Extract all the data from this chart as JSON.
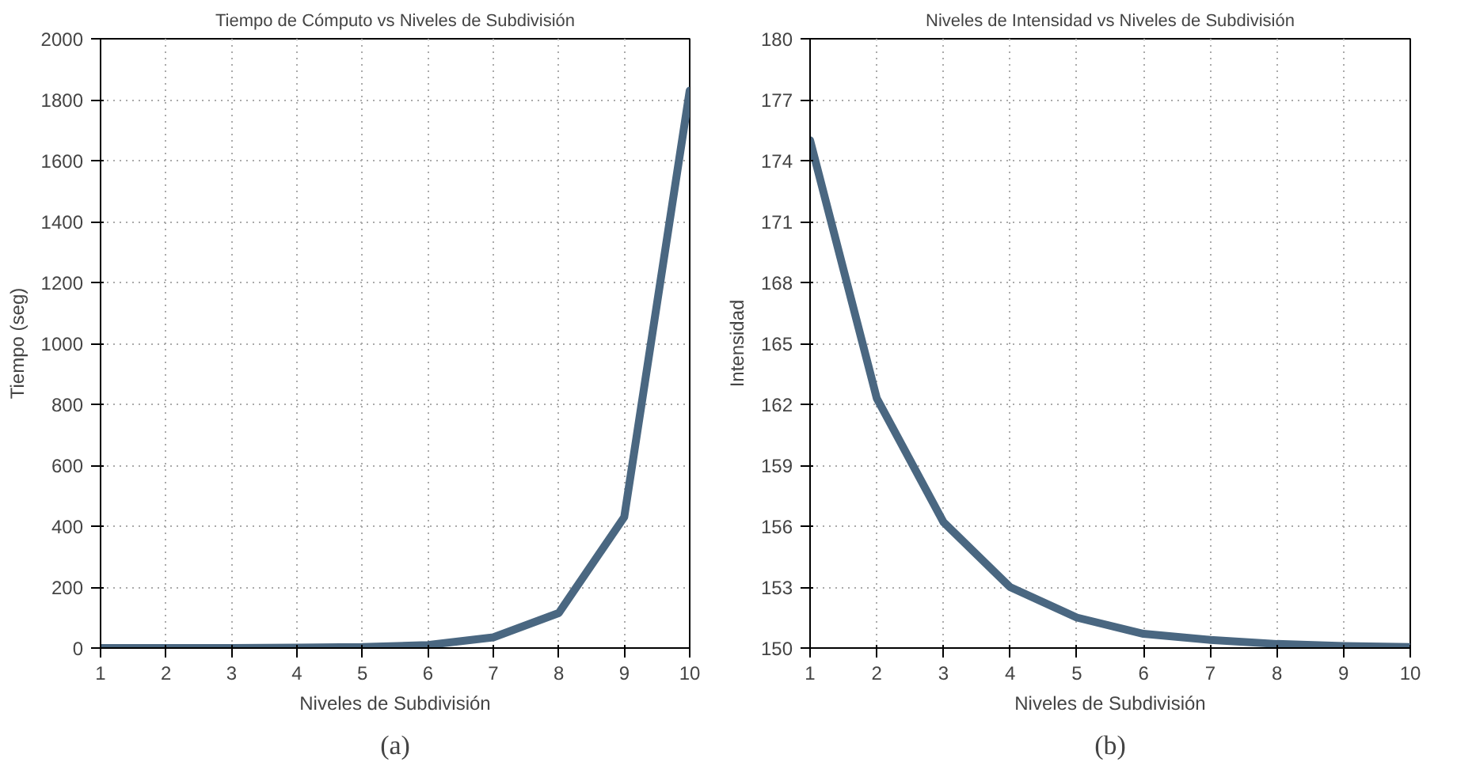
{
  "chart_data": [
    {
      "type": "line",
      "title": "Tiempo de Cómputo vs Niveles de Subdivisión",
      "xlabel": "Niveles de Subdivisión",
      "ylabel": "Tiempo (seg)",
      "x": [
        1,
        2,
        3,
        4,
        5,
        6,
        7,
        8,
        9,
        10
      ],
      "series": [
        {
          "color": "#4a6781",
          "values": [
            0,
            0,
            0,
            1,
            3,
            10,
            35,
            115,
            430,
            1830
          ]
        }
      ],
      "xlim": [
        1,
        10
      ],
      "xticks": [
        1,
        2,
        3,
        4,
        5,
        6,
        7,
        8,
        9,
        10
      ],
      "ylim": [
        0,
        2000
      ],
      "yticks": [
        0,
        200,
        400,
        600,
        800,
        1000,
        1200,
        1400,
        1600,
        1800,
        2000
      ],
      "grid": true,
      "line_style": "solid",
      "annotations": [
        "(a)"
      ]
    },
    {
      "type": "line",
      "title": "Niveles de Intensidad vs Niveles de Subdivisión",
      "xlabel": "Niveles de Subdivisión",
      "ylabel": "Intensidad",
      "x": [
        1,
        2,
        3,
        4,
        5,
        6,
        7,
        8,
        9,
        10
      ],
      "series": [
        {
          "color": "#4a6781",
          "values": [
            175,
            162.3,
            156.2,
            153,
            151.5,
            150.7,
            150.4,
            150.2,
            150.1,
            150.05
          ]
        }
      ],
      "xlim": [
        1,
        10
      ],
      "xticks": [
        1,
        2,
        3,
        4,
        5,
        6,
        7,
        8,
        9,
        10
      ],
      "ylim": [
        150,
        180
      ],
      "yticks": [
        150,
        153,
        156,
        159,
        162,
        165,
        168,
        171,
        174,
        177,
        180
      ],
      "grid": true,
      "line_style": "solid",
      "annotations": [
        "(b)"
      ]
    }
  ]
}
